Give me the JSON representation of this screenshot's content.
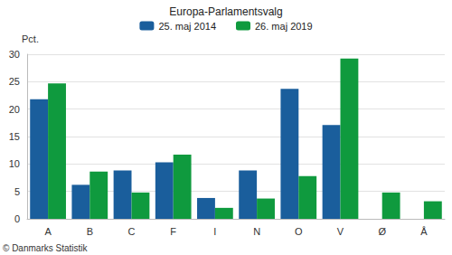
{
  "chart_data": {
    "type": "bar",
    "title": "Europa-Parlamentsvalg",
    "y_label": "Pct.",
    "source": "© Danmarks Statistik",
    "categories": [
      "A",
      "B",
      "C",
      "F",
      "I",
      "N",
      "O",
      "V",
      "Ø",
      "Å"
    ],
    "series": [
      {
        "name": "25. maj 2014",
        "color": "#1a5e9c",
        "values": [
          21.8,
          6.2,
          8.8,
          10.3,
          3.8,
          8.8,
          23.7,
          17.1,
          null,
          null
        ]
      },
      {
        "name": "26. maj 2019",
        "color": "#0f9a3e",
        "values": [
          24.7,
          8.6,
          4.8,
          11.7,
          2.0,
          3.7,
          7.8,
          29.2,
          4.8,
          3.2
        ]
      }
    ],
    "ylim": [
      0,
      30
    ],
    "yticks": [
      0,
      5,
      10,
      15,
      20,
      25,
      30
    ],
    "grid": true,
    "legend": "top"
  }
}
